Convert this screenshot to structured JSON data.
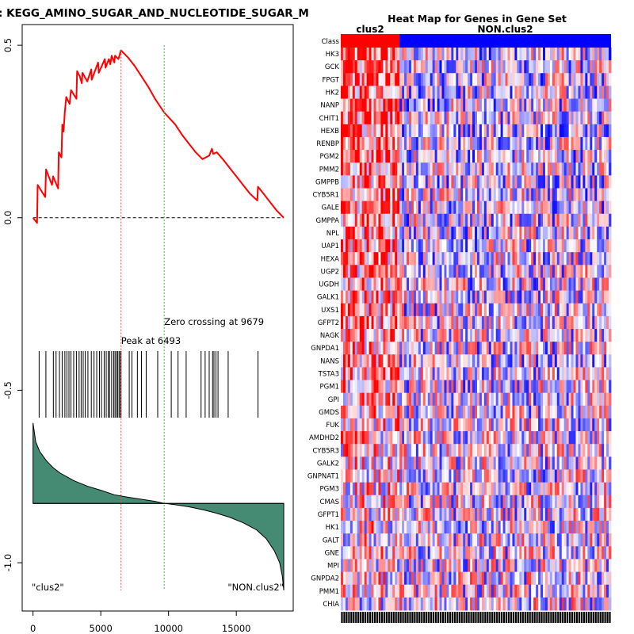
{
  "chart_data": [
    {
      "type": "line",
      "panel": "enrichment-plot",
      "title": ": KEGG_AMINO_SUGAR_AND_NUCLEOTIDE_SUGAR_M",
      "xlabel": "",
      "ylabel": "",
      "xlim": [
        -800,
        19200
      ],
      "ylim": [
        -1.14,
        0.56
      ],
      "x_ticks": [
        0,
        5000,
        10000,
        15000
      ],
      "x_tick_labels": [
        "0",
        "5000",
        "10000",
        "15000"
      ],
      "y_ticks": [
        0.5,
        0.0,
        -0.5,
        -1.0
      ],
      "y_tick_labels": [
        "0.5",
        "0.0",
        "-0.5",
        "-1.0"
      ],
      "n_genes": 18500,
      "peak": {
        "x": 6493,
        "label": "Peak at 6493",
        "color": "#ff4040"
      },
      "zero_crossing": {
        "x": 9679,
        "label": "Zero crossing at 9679",
        "color": "#40c040"
      },
      "left_label": "\"clus2\"",
      "right_label": "\"NON.clus2\"",
      "hit_positions": [
        450,
        950,
        1500,
        1700,
        1950,
        2150,
        2350,
        2500,
        2650,
        2800,
        3000,
        3200,
        3400,
        3550,
        3700,
        3850,
        4050,
        4300,
        4500,
        4700,
        4900,
        5050,
        5250,
        5400,
        5550,
        5650,
        5800,
        5950,
        6050,
        6150,
        6250,
        6350,
        6450,
        6493,
        7100,
        7300,
        7700,
        8000,
        8350,
        9200,
        10200,
        10700,
        11300,
        12400,
        12700,
        13000,
        13250,
        13350,
        13500,
        13650,
        14400,
        16600
      ],
      "es_curve": {
        "x": [
          0,
          300,
          340,
          900,
          960,
          1400,
          1480,
          1850,
          1900,
          2100,
          2160,
          2250,
          2350,
          2450,
          2700,
          2800,
          3200,
          3250,
          3450,
          3600,
          3650,
          4000,
          4300,
          4330,
          4800,
          4850,
          5300,
          5350,
          5600,
          5700,
          5800,
          6000,
          6050,
          6300,
          6493,
          7000,
          7500,
          8000,
          8500,
          9000,
          9679,
          10500,
          11000,
          11500,
          12000,
          12500,
          13000,
          13200,
          13300,
          13550,
          14000,
          14500,
          15000,
          15500,
          16000,
          16550,
          16600,
          17000,
          17500,
          18000,
          18500
        ],
        "y": [
          0.0,
          -0.015,
          0.095,
          0.06,
          0.14,
          0.095,
          0.12,
          0.085,
          0.19,
          0.175,
          0.27,
          0.25,
          0.31,
          0.35,
          0.33,
          0.37,
          0.345,
          0.425,
          0.41,
          0.39,
          0.42,
          0.395,
          0.43,
          0.4,
          0.45,
          0.42,
          0.46,
          0.435,
          0.46,
          0.445,
          0.47,
          0.45,
          0.47,
          0.46,
          0.485,
          0.465,
          0.44,
          0.41,
          0.38,
          0.345,
          0.305,
          0.27,
          0.24,
          0.215,
          0.19,
          0.17,
          0.18,
          0.2,
          0.185,
          0.19,
          0.17,
          0.145,
          0.12,
          0.095,
          0.07,
          0.05,
          0.09,
          0.07,
          0.045,
          0.02,
          0.0
        ]
      },
      "ranked_metric": {
        "baseline": -0.828,
        "x": [
          0,
          200,
          500,
          1000,
          1500,
          2000,
          3000,
          4000,
          5000,
          6000,
          7000,
          8000,
          9000,
          9679,
          10500,
          11500,
          12500,
          13500,
          14500,
          15500,
          16500,
          17200,
          17800,
          18200,
          18400,
          18500
        ],
        "y": [
          -0.595,
          -0.65,
          -0.678,
          -0.705,
          -0.725,
          -0.74,
          -0.762,
          -0.778,
          -0.79,
          -0.803,
          -0.81,
          -0.816,
          -0.822,
          -0.828,
          -0.832,
          -0.838,
          -0.846,
          -0.856,
          -0.868,
          -0.884,
          -0.905,
          -0.93,
          -0.965,
          -1.0,
          -1.04,
          -1.08
        ]
      }
    },
    {
      "type": "heatmap",
      "panel": "gene-set-heatmap",
      "title": "Heat Map for Genes in Gene Set",
      "class_row_label": "Class",
      "classes": [
        {
          "name": "clus2",
          "color": "#ff0000",
          "fraction": 0.22
        },
        {
          "name": "NON.clus2",
          "color": "#0000ff",
          "fraction": 0.78
        }
      ],
      "genes": [
        "HK3",
        "GCK",
        "FPGT",
        "HK2",
        "NANP",
        "CHIT1",
        "HEXB",
        "RENBP",
        "PGM2",
        "PMM2",
        "GMPPB",
        "CYB5R1",
        "GALE",
        "GMPPA",
        "NPL",
        "UAP1",
        "HEXA",
        "UGP2",
        "UGDH",
        "GALK1",
        "UXS1",
        "GFPT2",
        "NAGK",
        "GNPDA1",
        "NANS",
        "TSTA3",
        "PGM1",
        "GPI",
        "GMDS",
        "FUK",
        "AMDHD2",
        "CYB5R3",
        "GALK2",
        "GNPNAT1",
        "PGM3",
        "CMAS",
        "GFPT1",
        "HK1",
        "GALT",
        "GNE",
        "MPI",
        "GNPDA2",
        "PMM1",
        "CHIA"
      ],
      "n_samples": 115,
      "color_scale": {
        "high": "#ff0000",
        "mid": "#ffffff",
        "low": "#0000ff"
      }
    }
  ]
}
